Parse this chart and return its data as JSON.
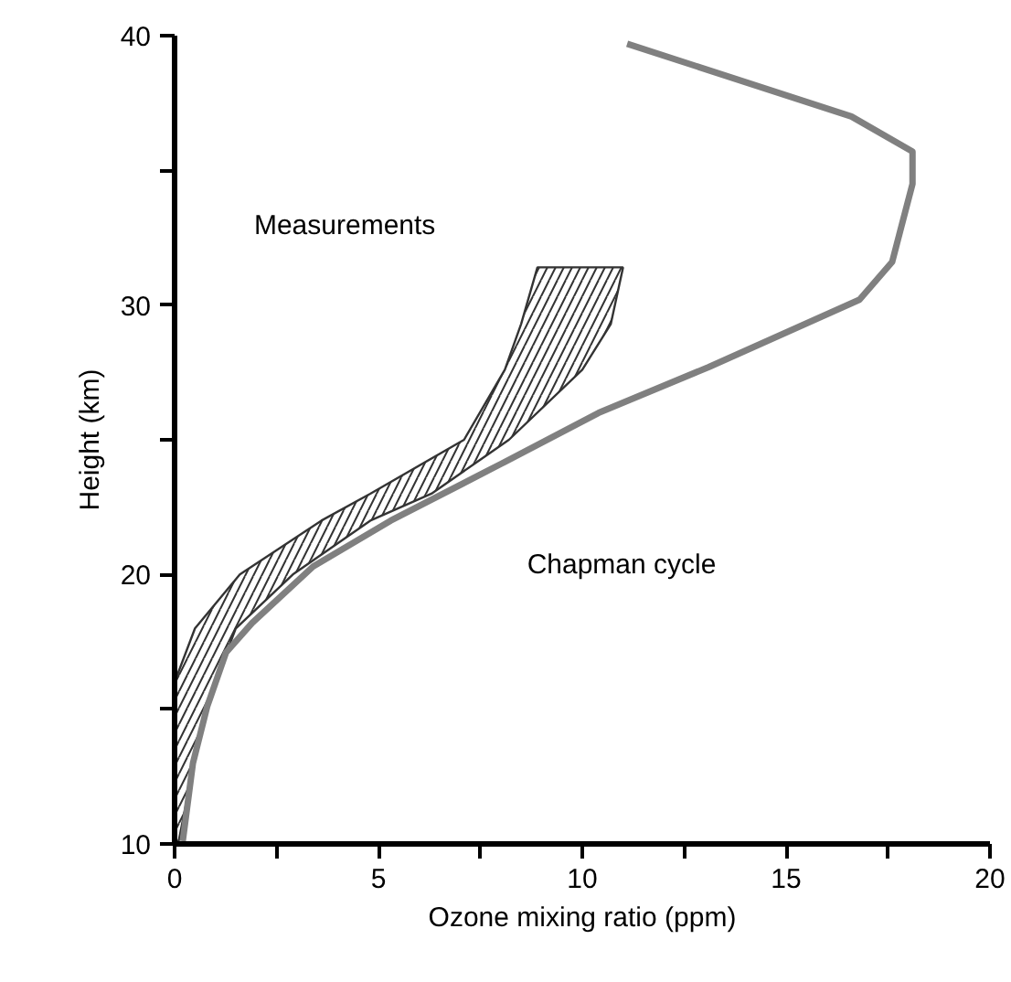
{
  "chart_data": {
    "type": "line",
    "xlabel": "Ozone mixing ratio (ppm)",
    "ylabel": "Height (km)",
    "xlim": [
      0,
      20
    ],
    "ylim": [
      10,
      40
    ],
    "xticks": [
      0,
      {
        "value": 2.5,
        "label": null
      },
      5,
      {
        "value": 7.5,
        "label": null
      },
      10,
      {
        "value": 12.5,
        "label": null
      },
      15,
      {
        "value": 17.5,
        "label": null
      },
      20
    ],
    "yticks": [
      10,
      {
        "value": 15,
        "label": null
      },
      20,
      {
        "value": 25,
        "label": null
      },
      30,
      {
        "value": 35,
        "label": null
      },
      40
    ],
    "grid": false,
    "annotations": [
      "Measurements",
      "Chapman cycle"
    ],
    "series": [
      {
        "type": "area",
        "color": "#333333",
        "x": [
          8.9,
          8.5,
          8.1,
          7.1,
          4.8,
          3.6,
          1.6,
          0.5,
          0.0,
          0.0,
          0.1,
          0.35,
          0.6,
          1.0,
          1.5,
          2.9,
          4.8,
          6.3,
          8.2,
          10.0,
          10.7,
          11.0
        ],
        "values": [
          31.4,
          29.3,
          27.6,
          25,
          23,
          22,
          20,
          18,
          16,
          10.1,
          10.1,
          12,
          14,
          16,
          18,
          20,
          22,
          23,
          25,
          27.6,
          29.3,
          31.4
        ]
      },
      {
        "color": "#808080",
        "x": [
          11.1,
          16.6,
          18.1,
          18.1,
          17.6,
          16.8,
          13.1,
          10.4,
          8.0,
          5.3,
          3.4,
          1.9,
          1.26,
          0.8,
          0.45,
          0.2
        ],
        "values": [
          39.7,
          37.0,
          35.7,
          34.5,
          31.6,
          30.2,
          27.7,
          26.0,
          24.1,
          22.0,
          20.3,
          18.2,
          17.1,
          15.1,
          13.0,
          10.1
        ]
      }
    ]
  }
}
